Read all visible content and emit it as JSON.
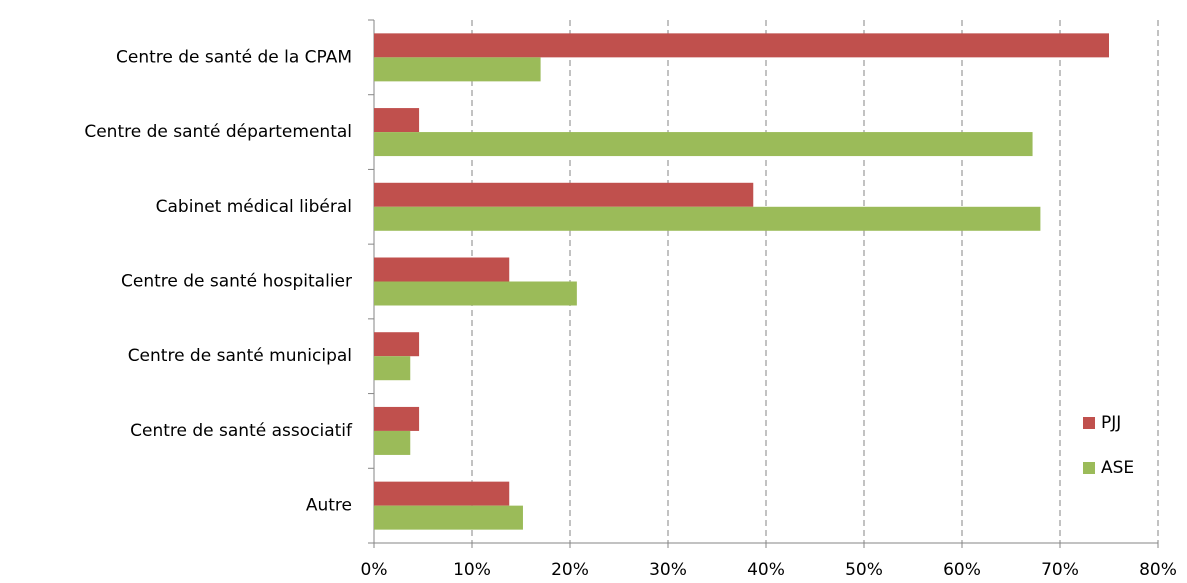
{
  "chart_data": {
    "type": "hbar",
    "categories": [
      "Centre de santé de la CPAM",
      "Centre de santé départemental",
      "Cabinet médical libéral",
      "Centre de santé hospitalier",
      "Centre de santé municipal",
      "Centre de santé associatif",
      "Autre"
    ],
    "series": [
      {
        "name": "PJJ",
        "color": "#c0504d",
        "values": [
          75,
          4.6,
          38.7,
          13.8,
          4.6,
          4.6,
          13.8
        ]
      },
      {
        "name": "ASE",
        "color": "#9bbb59",
        "values": [
          17,
          67.2,
          68,
          20.7,
          3.7,
          3.7,
          15.2
        ]
      }
    ],
    "xlim": [
      0,
      80
    ],
    "xticks": [
      {
        "value": 0,
        "label": "0%"
      },
      {
        "value": 10,
        "label": "10%"
      },
      {
        "value": 20,
        "label": "20%"
      },
      {
        "value": 30,
        "label": "30%"
      },
      {
        "value": 40,
        "label": "40%"
      },
      {
        "value": 50,
        "label": "50%"
      },
      {
        "value": 60,
        "label": "60%"
      },
      {
        "value": 70,
        "label": "70%"
      },
      {
        "value": 80,
        "label": "80%"
      }
    ],
    "grid": true,
    "legend": "right"
  }
}
